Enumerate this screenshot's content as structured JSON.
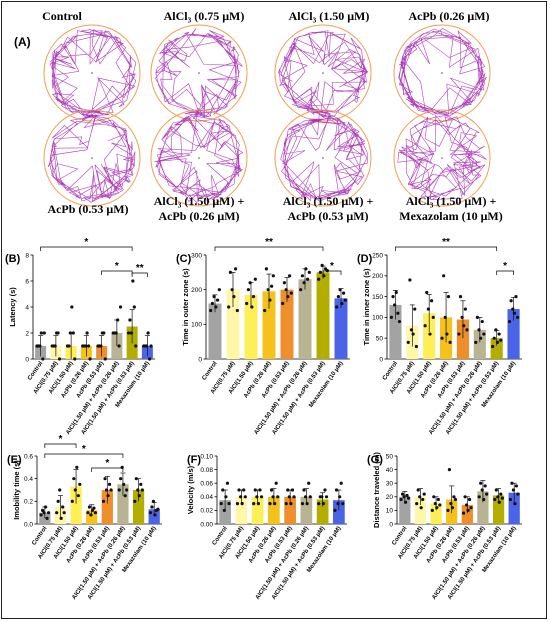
{
  "figure": {
    "panel_labels": [
      "(A)",
      "(B)",
      "(C)",
      "(D)",
      "(E)",
      "(F)",
      "(G)"
    ],
    "track_titles": [
      [
        "Control"
      ],
      [
        "AlCl₃ (0.75 μM)"
      ],
      [
        "AlCl₃ (1.50 μM)"
      ],
      [
        "AcPb (0.26 μM)"
      ],
      [
        "AcPb (0.53 μM)"
      ],
      [
        "AlCl₃ (1.50 μM) +",
        "AcPb (0.26 μM)"
      ],
      [
        "AlCl₃ (1.50 μM) +",
        "AcPb (0.53 μM)"
      ],
      [
        "AlCl₃ (1.50 μM) +",
        "Mexazolam (10 μM)"
      ]
    ],
    "colors": {
      "track": "#a21caf",
      "arena_ring": "#f0a050",
      "groups": [
        "#a3a3a3",
        "#fff7a8",
        "#ffef57",
        "#f5c21b",
        "#ee8f2c",
        "#b8b392",
        "#b3ad00",
        "#4b63e6"
      ]
    }
  },
  "chart_data": [
    {
      "panel": "(B)",
      "type": "bar",
      "ylabel": "Latency (s)",
      "ylim": [
        0,
        8
      ],
      "yticks": [
        0,
        2,
        4,
        6,
        8
      ],
      "categories": [
        "Control",
        "AlCl(0.75 μM)",
        "AlCl(1.50 μM)",
        "AcPb (0.26 μM)",
        "AcPb (0.53 μM)",
        "AlCl(1.50 μM) + AcPb (0.26 μM)",
        "AlCl(1.50 μM) + AcPb (0.53 μM)",
        "Mexazolam (10 μM)"
      ],
      "values": [
        1.0,
        1.0,
        1.0,
        1.0,
        1.0,
        2.0,
        2.5,
        1.0
      ],
      "errors": [
        0.8,
        0.8,
        1.0,
        0.8,
        0.8,
        1.0,
        1.3,
        0.8
      ],
      "points": [
        [
          1,
          1,
          1,
          2,
          0,
          2
        ],
        [
          1,
          1,
          1,
          2,
          2,
          0
        ],
        [
          1,
          1,
          2,
          4,
          2,
          0
        ],
        [
          1,
          1,
          1,
          2,
          1,
          0
        ],
        [
          1,
          1,
          1,
          2,
          2,
          0
        ],
        [
          2,
          2,
          2,
          3,
          1,
          4
        ],
        [
          2,
          3,
          2,
          6,
          4,
          1
        ],
        [
          1,
          1,
          1,
          2,
          0,
          1
        ]
      ],
      "significance": [
        {
          "from": 0,
          "to": 6,
          "label": "*"
        },
        {
          "from": 4,
          "to": 6,
          "label": "*"
        },
        {
          "from": 6,
          "to": 7,
          "label": "**"
        }
      ]
    },
    {
      "panel": "(C)",
      "type": "bar",
      "ylabel": "Time in outer zone (s)",
      "ylim": [
        0,
        300
      ],
      "yticks": [
        0,
        100,
        200,
        300
      ],
      "categories": [
        "Control",
        "AlCl(0.75 μM)",
        "AlCl(1.50 μM)",
        "AcPb (0.26 μM)",
        "AcPb (0.53 μM)",
        "AlCl(1.50 μM) + AcPb (0.26 μM)",
        "AlCl(1.50 μM) + AcPb (0.53 μM)",
        "Mexazolam (10 μM)"
      ],
      "values": [
        160,
        200,
        185,
        195,
        200,
        230,
        250,
        175
      ],
      "errors": [
        25,
        50,
        35,
        50,
        35,
        30,
        18,
        28
      ],
      "points": [
        [
          140,
          160,
          180,
          150,
          170,
          200
        ],
        [
          150,
          250,
          200,
          180,
          260,
          140
        ],
        [
          160,
          200,
          220,
          150,
          180,
          230
        ],
        [
          140,
          260,
          200,
          170,
          210,
          240
        ],
        [
          160,
          220,
          200,
          180,
          240,
          190
        ],
        [
          200,
          240,
          220,
          260,
          230,
          250
        ],
        [
          230,
          250,
          270,
          240,
          260,
          255
        ],
        [
          150,
          180,
          200,
          160,
          190,
          170
        ]
      ],
      "significance": [
        {
          "from": 0,
          "to": 6,
          "label": "**"
        },
        {
          "from": 6,
          "to": 7,
          "label": "*"
        }
      ]
    },
    {
      "panel": "(D)",
      "type": "bar",
      "ylabel": "Time in inner zone (s)",
      "ylim": [
        0,
        250
      ],
      "yticks": [
        0,
        50,
        100,
        150,
        200,
        250
      ],
      "categories": [
        "Control",
        "AlCl(0.75 μM)",
        "AlCl(1.50 μM)",
        "AcPb (0.26 μM)",
        "AcPb (0.53 μM)",
        "AlCl(1.50 μM) + AcPb (0.26 μM)",
        "AlCl(1.50 μM) + AcPb (0.53 μM)",
        "Mexazolam (10 μM)"
      ],
      "values": [
        130,
        80,
        110,
        100,
        95,
        70,
        50,
        120
      ],
      "errors": [
        35,
        50,
        45,
        60,
        45,
        30,
        18,
        28
      ],
      "points": [
        [
          100,
          150,
          130,
          160,
          110,
          90
        ],
        [
          40,
          190,
          70,
          60,
          120,
          30
        ],
        [
          80,
          160,
          120,
          60,
          140,
          100
        ],
        [
          50,
          200,
          100,
          60,
          150,
          40
        ],
        [
          60,
          150,
          100,
          80,
          120,
          70
        ],
        [
          40,
          100,
          70,
          50,
          90,
          60
        ],
        [
          30,
          50,
          70,
          40,
          60,
          45
        ],
        [
          90,
          140,
          120,
          110,
          150,
          100
        ]
      ],
      "significance": [
        {
          "from": 0,
          "to": 6,
          "label": "**"
        },
        {
          "from": 6,
          "to": 7,
          "label": "*"
        }
      ]
    },
    {
      "panel": "(E)",
      "type": "bar",
      "ylabel": "Imobility time (s)",
      "ylim": [
        0,
        0.6
      ],
      "yticks": [
        0.0,
        0.2,
        0.4,
        0.6
      ],
      "categories": [
        "Control",
        "AlCl(0.75 μM)",
        "AlCl(1.50 μM)",
        "AcPb (0.26 μM)",
        "AcPb (0.53 μM)",
        "AlCl(1.50 μM) + AcPb (0.26 μM)",
        "AlCl(1.50 μM) + AcPb (0.53 μM)",
        "Mexazolam (10 μM)"
      ],
      "values": [
        0.1,
        0.15,
        0.33,
        0.12,
        0.3,
        0.35,
        0.3,
        0.13
      ],
      "errors": [
        0.05,
        0.1,
        0.15,
        0.05,
        0.12,
        0.1,
        0.1,
        0.06
      ],
      "points": [
        [
          0.08,
          0.12,
          0.1,
          0.15,
          0.05,
          0.1
        ],
        [
          0.1,
          0.2,
          0.3,
          0.05,
          0.15,
          0.1
        ],
        [
          0.2,
          0.4,
          0.3,
          0.5,
          0.25,
          0.35
        ],
        [
          0.1,
          0.15,
          0.08,
          0.12,
          0.14,
          0.1
        ],
        [
          0.2,
          0.4,
          0.3,
          0.25,
          0.35,
          0.3
        ],
        [
          0.3,
          0.4,
          0.5,
          0.35,
          0.25,
          0.3
        ],
        [
          0.2,
          0.4,
          0.3,
          0.25,
          0.35,
          0.3
        ],
        [
          0.1,
          0.15,
          0.2,
          0.08,
          0.12,
          0.13
        ]
      ],
      "significance": [
        {
          "from": 0,
          "to": 2,
          "label": "*"
        },
        {
          "from": 0,
          "to": 5,
          "label": "*"
        },
        {
          "from": 3,
          "to": 5,
          "label": "*"
        }
      ]
    },
    {
      "panel": "(F)",
      "type": "bar",
      "ylabel": "Velocity (m/s)",
      "ylim": [
        0,
        0.1
      ],
      "yticks": [
        0.0,
        0.02,
        0.04,
        0.06,
        0.08,
        0.1
      ],
      "categories": [
        "Control",
        "AlCl(0.75 μM)",
        "AlCl(1.50 μM)",
        "AcPb (0.26 μM)",
        "AcPb (0.53 μM)",
        "AlCl(1.50 μM) + AcPb (0.26 μM)",
        "AlCl(1.50 μM) + AcPb (0.53 μM)",
        "Mexazolam (10 μM)"
      ],
      "values": [
        0.035,
        0.04,
        0.04,
        0.04,
        0.04,
        0.04,
        0.036,
        0.035
      ],
      "errors": [
        0.015,
        0.01,
        0.01,
        0.012,
        0.01,
        0.012,
        0.01,
        0.015
      ],
      "points": [
        [
          0.03,
          0.05,
          0.02,
          0.04,
          0.06,
          0.03
        ],
        [
          0.03,
          0.05,
          0.04,
          0.03,
          0.05,
          0.04
        ],
        [
          0.03,
          0.05,
          0.04,
          0.03,
          0.05,
          0.04
        ],
        [
          0.03,
          0.05,
          0.04,
          0.03,
          0.06,
          0.04
        ],
        [
          0.03,
          0.05,
          0.04,
          0.03,
          0.05,
          0.04
        ],
        [
          0.03,
          0.05,
          0.04,
          0.03,
          0.06,
          0.04
        ],
        [
          0.03,
          0.04,
          0.04,
          0.03,
          0.05,
          0.04
        ],
        [
          0.02,
          0.05,
          0.03,
          0.04,
          0.06,
          0.03
        ]
      ],
      "significance": []
    },
    {
      "panel": "(G)",
      "type": "bar",
      "ylabel": "Distance traveled (m)",
      "ylim": [
        0,
        50
      ],
      "yticks": [
        0,
        10,
        20,
        30,
        40,
        50
      ],
      "categories": [
        "Control",
        "AlCl(0.75 μM)",
        "AlCl(1.50 μM)",
        "AcPb (0.26 μM)",
        "AcPb (0.53 μM)",
        "AlCl(1.50 μM) + AcPb (0.26 μM)",
        "AlCl(1.50 μM) + AcPb (0.53 μM)",
        "Mexazolam (10 μM)"
      ],
      "values": [
        20,
        20,
        15,
        18,
        14,
        24,
        21,
        23
      ],
      "errors": [
        4,
        6,
        5,
        10,
        6,
        8,
        5,
        7
      ],
      "points": [
        [
          18,
          22,
          20,
          16,
          21,
          19
        ],
        [
          15,
          25,
          20,
          12,
          18,
          22
        ],
        [
          10,
          20,
          15,
          12,
          18,
          14
        ],
        [
          10,
          40,
          15,
          12,
          20,
          18
        ],
        [
          8,
          20,
          14,
          10,
          18,
          12
        ],
        [
          20,
          30,
          25,
          18,
          28,
          22
        ],
        [
          18,
          25,
          20,
          16,
          22,
          19
        ],
        [
          18,
          30,
          25,
          15,
          28,
          22
        ]
      ],
      "significance": []
    }
  ]
}
